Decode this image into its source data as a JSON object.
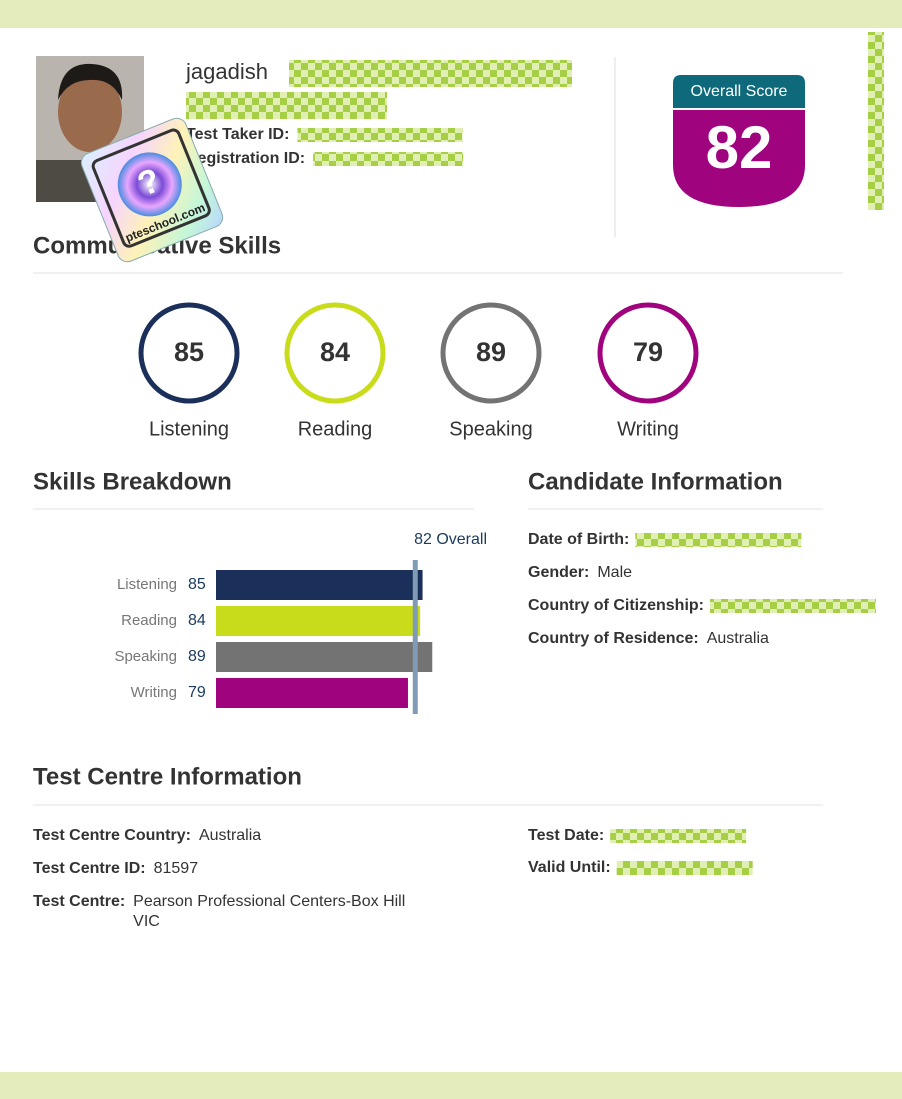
{
  "candidate": {
    "name": "jagadish",
    "ids": [
      {
        "label": "Test Taker ID:"
      },
      {
        "label": "Registration ID:"
      }
    ]
  },
  "watermark": "pteschool.com",
  "overall_score": {
    "label": "Overall Score",
    "value": 82
  },
  "communicative_skills": {
    "title": "Communicative Skills",
    "skills": [
      {
        "name": "Listening",
        "score": 85,
        "color": "#1b2f5b"
      },
      {
        "name": "Reading",
        "score": 84,
        "color": "#c9dc1c"
      },
      {
        "name": "Speaking",
        "score": 89,
        "color": "#737373"
      },
      {
        "name": "Writing",
        "score": 79,
        "color": "#a0037e"
      }
    ]
  },
  "skills_breakdown": {
    "title": "Skills Breakdown",
    "overall": {
      "value": 82,
      "label": "82 Overall"
    },
    "xlim": [
      0,
      100
    ]
  },
  "candidate_information": {
    "title": "Candidate Information",
    "fields": [
      {
        "label": "Date of Birth:"
      },
      {
        "label": "Gender:",
        "value": "Male"
      },
      {
        "label": "Country of Citizenship:"
      },
      {
        "label": "Country of Residence:",
        "value": "Australia"
      }
    ]
  },
  "test_centre_information": {
    "title": "Test Centre Information",
    "fields": [
      {
        "label": "Test Centre Country:",
        "value": "Australia"
      },
      {
        "label": "Test Centre ID:",
        "value": "81597"
      },
      {
        "label": "Test Centre:",
        "value": "Pearson Professional Centers-Box Hill VIC"
      }
    ],
    "dates": [
      {
        "label": "Test Date:"
      },
      {
        "label": "Valid Until:"
      }
    ]
  }
}
